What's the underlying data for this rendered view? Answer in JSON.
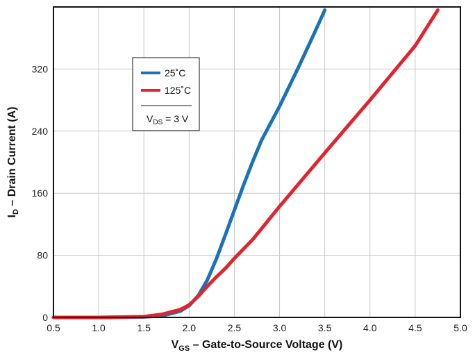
{
  "chart_data": {
    "type": "line",
    "xlabel": {
      "main": "V",
      "sub": "GS",
      "rest": " – Gate-to-Source Voltage (V)"
    },
    "ylabel": {
      "main": "I",
      "sub": "D",
      "rest": " – Drain Current (A)"
    },
    "xlim": [
      0.5,
      5.0
    ],
    "ylim": [
      0,
      400
    ],
    "x_ticks": [
      "0.5",
      "1.0",
      "1.5",
      "2.0",
      "2.5",
      "3.0",
      "3.5",
      "4.0",
      "4.5",
      "5.0"
    ],
    "y_ticks": [
      "0",
      "80",
      "160",
      "240",
      "320"
    ],
    "grid": true,
    "legend_position": "top-left",
    "series": [
      {
        "name": "25˚C",
        "color": "#1a72b8",
        "points": [
          [
            0.5,
            0
          ],
          [
            1.0,
            0
          ],
          [
            1.5,
            0.5
          ],
          [
            1.7,
            2
          ],
          [
            1.9,
            8
          ],
          [
            2.0,
            15
          ],
          [
            2.1,
            28
          ],
          [
            2.2,
            48
          ],
          [
            2.3,
            75
          ],
          [
            2.4,
            106
          ],
          [
            2.5,
            138
          ],
          [
            2.6,
            170
          ],
          [
            2.7,
            200
          ],
          [
            2.8,
            228
          ],
          [
            2.9,
            250
          ],
          [
            3.0,
            272
          ],
          [
            3.1,
            296
          ],
          [
            3.2,
            320
          ],
          [
            3.3,
            345
          ],
          [
            3.4,
            370
          ],
          [
            3.5,
            396
          ]
        ]
      },
      {
        "name": "125˚C",
        "color": "#e0252e",
        "points": [
          [
            0.5,
            0
          ],
          [
            1.0,
            0
          ],
          [
            1.5,
            1
          ],
          [
            1.7,
            4
          ],
          [
            1.9,
            10
          ],
          [
            2.0,
            16
          ],
          [
            2.1,
            27
          ],
          [
            2.2,
            40
          ],
          [
            2.3,
            52
          ],
          [
            2.4,
            63
          ],
          [
            2.5,
            76
          ],
          [
            2.7,
            100
          ],
          [
            3.0,
            143
          ],
          [
            3.5,
            212
          ],
          [
            4.0,
            280
          ],
          [
            4.5,
            350
          ],
          [
            4.75,
            396
          ]
        ]
      }
    ],
    "annotation": {
      "main": "V",
      "sub": "DS",
      "rest": " = 3 V"
    }
  }
}
